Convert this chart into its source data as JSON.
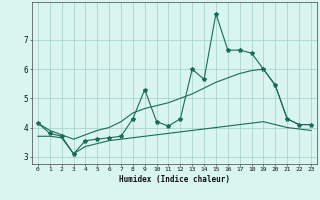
{
  "xlabel": "Humidex (Indice chaleur)",
  "x_values": [
    0,
    1,
    2,
    3,
    4,
    5,
    6,
    7,
    8,
    9,
    10,
    11,
    12,
    13,
    14,
    15,
    16,
    17,
    18,
    19,
    20,
    21,
    22,
    23
  ],
  "main_line": [
    4.15,
    3.8,
    3.7,
    3.1,
    3.55,
    3.6,
    3.65,
    3.7,
    4.3,
    5.3,
    4.2,
    4.05,
    4.3,
    6.0,
    5.65,
    7.9,
    6.65,
    6.65,
    6.55,
    6.0,
    5.45,
    4.3,
    4.1,
    4.1
  ],
  "line_upper": [
    4.15,
    3.9,
    3.75,
    3.6,
    3.75,
    3.9,
    4.0,
    4.2,
    4.5,
    4.65,
    4.75,
    4.85,
    5.0,
    5.15,
    5.35,
    5.55,
    5.7,
    5.85,
    5.95,
    6.0,
    5.45,
    4.3,
    4.1,
    4.1
  ],
  "line_lower": [
    3.7,
    3.7,
    3.65,
    3.1,
    3.35,
    3.45,
    3.55,
    3.6,
    3.65,
    3.7,
    3.75,
    3.8,
    3.85,
    3.9,
    3.95,
    4.0,
    4.05,
    4.1,
    4.15,
    4.2,
    4.1,
    4.0,
    3.95,
    3.9
  ],
  "line_color": "#1a6b5a",
  "bg_color": "#d8f5f0",
  "grid_color": "#a0cfc8",
  "ylim": [
    2.75,
    8.3
  ],
  "yticks": [
    3,
    4,
    5,
    6,
    7
  ],
  "xticks": [
    0,
    1,
    2,
    3,
    4,
    5,
    6,
    7,
    8,
    9,
    10,
    11,
    12,
    13,
    14,
    15,
    16,
    17,
    18,
    19,
    20,
    21,
    22,
    23
  ]
}
